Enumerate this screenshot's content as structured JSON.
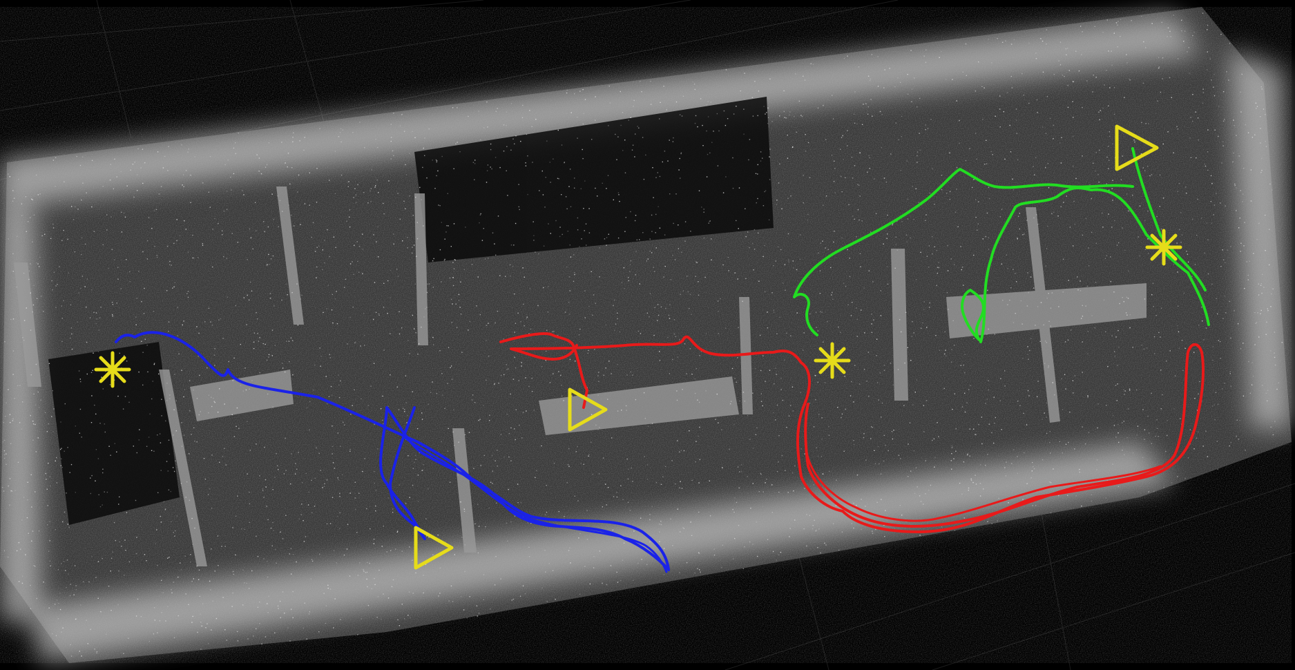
{
  "scene": {
    "view": "3d-point-cloud-map",
    "background_color": "#000000",
    "grid_color": "#1c1c1c",
    "point_cloud_color": "#d8d8d8"
  },
  "trajectories": [
    {
      "id": "trajectory-blue",
      "color": "#1a22e8"
    },
    {
      "id": "trajectory-red",
      "color": "#e81a1a"
    },
    {
      "id": "trajectory-green",
      "color": "#22dd22"
    }
  ],
  "markers": {
    "start_marker": {
      "shape": "asterisk",
      "color": "#e6dc1a"
    },
    "end_marker": {
      "shape": "triangle",
      "color": "#e6dc1a"
    }
  }
}
